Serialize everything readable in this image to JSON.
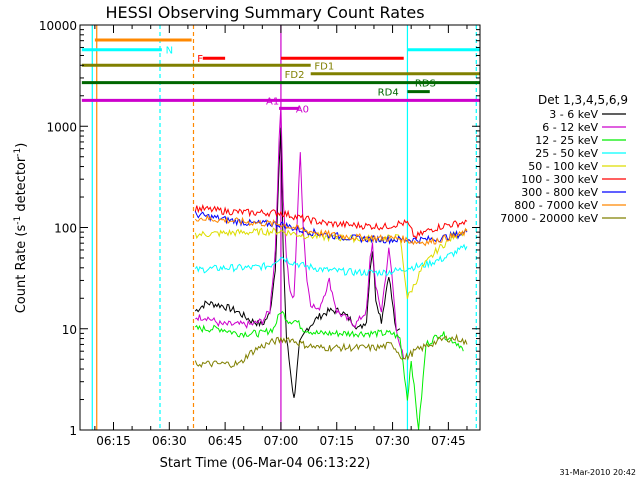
{
  "chart_data": {
    "type": "line",
    "title": "HESSI Observing Summary Count Rates",
    "xlabel": "Start Time (06-Mar-04 06:13:22)",
    "ylabel_main": "Count Rate (s",
    "ylabel_sup1": "-1",
    "ylabel_mid": " detector",
    "ylabel_sup2": "-1",
    "ylabel_end": ")",
    "yscale": "log",
    "ylim": [
      1,
      10000
    ],
    "xlim_minutes": [
      6.0,
      113.5
    ],
    "x_ticks": [
      {
        "label": "06:15",
        "t": 15
      },
      {
        "label": "06:30",
        "t": 30
      },
      {
        "label": "06:45",
        "t": 45
      },
      {
        "label": "07:00",
        "t": 60
      },
      {
        "label": "07:15",
        "t": 75
      },
      {
        "label": "07:30",
        "t": 90
      },
      {
        "label": "07:45",
        "t": 105
      }
    ],
    "y_ticks": [
      {
        "label": "1",
        "v": 1
      },
      {
        "label": "10",
        "v": 10
      },
      {
        "label": "100",
        "v": 100
      },
      {
        "label": "1000",
        "v": 1000
      },
      {
        "label": "10000",
        "v": 10000
      }
    ],
    "legend_title": "Det 1,3,4,5,6,9",
    "series": [
      {
        "name": "3 - 6 keV",
        "color": "#000000",
        "points": [
          [
            37,
            15
          ],
          [
            40,
            18
          ],
          [
            44,
            17
          ],
          [
            48,
            15
          ],
          [
            52,
            12
          ],
          [
            55,
            11
          ],
          [
            57,
            14
          ],
          [
            58.5,
            40
          ],
          [
            59.5,
            400
          ],
          [
            60,
            900
          ],
          [
            60.6,
            60
          ],
          [
            61.5,
            8
          ],
          [
            62.5,
            4
          ],
          [
            63.5,
            2
          ],
          [
            64,
            3
          ],
          [
            65,
            7
          ],
          [
            67,
            10
          ],
          [
            70,
            13
          ],
          [
            73,
            15
          ],
          [
            76,
            15
          ],
          [
            79,
            12
          ],
          [
            81,
            10
          ],
          [
            83,
            12
          ],
          [
            84,
            40
          ],
          [
            84.6,
            60
          ],
          [
            85.5,
            20
          ],
          [
            87,
            12
          ],
          [
            89,
            35
          ],
          [
            89.8,
            20
          ],
          [
            91,
            9
          ],
          [
            92,
            10
          ]
        ]
      },
      {
        "name": "6 - 12 keV",
        "color": "#cc00cc",
        "points": [
          [
            37,
            13
          ],
          [
            40,
            13
          ],
          [
            44,
            11
          ],
          [
            48,
            11
          ],
          [
            52,
            11
          ],
          [
            55,
            12
          ],
          [
            57,
            15
          ],
          [
            58.5,
            60
          ],
          [
            59.5,
            700
          ],
          [
            60,
            1700
          ],
          [
            60.6,
            200
          ],
          [
            61.5,
            50
          ],
          [
            62.5,
            22
          ],
          [
            63.5,
            20
          ],
          [
            64.5,
            150
          ],
          [
            65.2,
            550
          ],
          [
            66,
            100
          ],
          [
            67,
            30
          ],
          [
            68,
            18
          ],
          [
            70,
            15
          ],
          [
            73,
            30
          ],
          [
            75,
            15
          ],
          [
            77,
            13
          ],
          [
            80,
            11
          ],
          [
            83,
            15
          ],
          [
            84,
            50
          ],
          [
            84.6,
            70
          ],
          [
            85.5,
            25
          ],
          [
            87,
            15
          ],
          [
            89,
            60
          ],
          [
            89.8,
            35
          ],
          [
            91,
            10
          ],
          [
            93,
            5
          ]
        ]
      },
      {
        "name": "12 - 25 keV",
        "color": "#00ee00",
        "points": [
          [
            37,
            10
          ],
          [
            40,
            10
          ],
          [
            44,
            10
          ],
          [
            48,
            9
          ],
          [
            52,
            9
          ],
          [
            55,
            9
          ],
          [
            58,
            10
          ],
          [
            60,
            15
          ],
          [
            62,
            12
          ],
          [
            64,
            12
          ],
          [
            66,
            10
          ],
          [
            70,
            9
          ],
          [
            75,
            9
          ],
          [
            80,
            9
          ],
          [
            85,
            9
          ],
          [
            90,
            9
          ],
          [
            92,
            8
          ],
          [
            94,
            2
          ],
          [
            95,
            5
          ],
          [
            97,
            1
          ],
          [
            99,
            7
          ],
          [
            103,
            9
          ],
          [
            108,
            7
          ],
          [
            109,
            6
          ]
        ]
      },
      {
        "name": "25 - 50 keV",
        "color": "#00ffff",
        "points": [
          [
            37,
            38
          ],
          [
            45,
            40
          ],
          [
            52,
            40
          ],
          [
            57,
            42
          ],
          [
            60,
            52
          ],
          [
            62,
            47
          ],
          [
            66,
            42
          ],
          [
            72,
            38
          ],
          [
            80,
            36
          ],
          [
            88,
            36
          ],
          [
            92,
            38
          ],
          [
            94,
            40
          ],
          [
            98,
            42
          ],
          [
            104,
            50
          ],
          [
            110,
            65
          ]
        ]
      },
      {
        "name": "50 - 100 keV",
        "color": "#dddd00",
        "points": [
          [
            37,
            85
          ],
          [
            45,
            88
          ],
          [
            52,
            90
          ],
          [
            60,
            92
          ],
          [
            65,
            85
          ],
          [
            72,
            80
          ],
          [
            80,
            78
          ],
          [
            88,
            78
          ],
          [
            92,
            80
          ],
          [
            94,
            20
          ],
          [
            96,
            28
          ],
          [
            98,
            40
          ],
          [
            102,
            60
          ],
          [
            106,
            80
          ],
          [
            110,
            95
          ]
        ]
      },
      {
        "name": "100 - 300 keV",
        "color": "#ff0000",
        "points": [
          [
            37,
            155
          ],
          [
            45,
            145
          ],
          [
            52,
            140
          ],
          [
            60,
            140
          ],
          [
            65,
            125
          ],
          [
            72,
            110
          ],
          [
            80,
            105
          ],
          [
            88,
            102
          ],
          [
            92,
            110
          ],
          [
            94,
            110
          ],
          [
            96,
            80
          ],
          [
            100,
            95
          ],
          [
            104,
            105
          ],
          [
            108,
            110
          ],
          [
            110,
            115
          ]
        ]
      },
      {
        "name": "300 - 800 keV",
        "color": "#0000ff",
        "points": [
          [
            37,
            135
          ],
          [
            45,
            120
          ],
          [
            52,
            110
          ],
          [
            60,
            108
          ],
          [
            65,
            95
          ],
          [
            72,
            85
          ],
          [
            80,
            78
          ],
          [
            88,
            76
          ],
          [
            92,
            76
          ],
          [
            96,
            76
          ],
          [
            100,
            76
          ],
          [
            104,
            80
          ],
          [
            108,
            86
          ],
          [
            110,
            90
          ]
        ]
      },
      {
        "name": "800 - 7000 keV",
        "color": "#ff8800",
        "points": [
          [
            37,
            125
          ],
          [
            45,
            118
          ],
          [
            52,
            112
          ],
          [
            60,
            108
          ],
          [
            65,
            96
          ],
          [
            72,
            86
          ],
          [
            80,
            80
          ],
          [
            88,
            78
          ],
          [
            92,
            78
          ],
          [
            96,
            72
          ],
          [
            100,
            72
          ],
          [
            104,
            78
          ],
          [
            108,
            84
          ],
          [
            110,
            92
          ]
        ]
      },
      {
        "name": "7000 - 20000 keV",
        "color": "#808000",
        "points": [
          [
            37,
            4.5
          ],
          [
            45,
            4.5
          ],
          [
            49,
            4.5
          ],
          [
            51,
            5.5
          ],
          [
            54,
            6.5
          ],
          [
            58,
            7.5
          ],
          [
            62,
            8
          ],
          [
            66,
            7
          ],
          [
            70,
            6.5
          ],
          [
            75,
            6.5
          ],
          [
            80,
            6.5
          ],
          [
            86,
            6.5
          ],
          [
            90,
            7
          ],
          [
            93,
            5
          ],
          [
            96,
            6
          ],
          [
            100,
            7
          ],
          [
            104,
            8
          ],
          [
            108,
            8
          ],
          [
            110,
            7
          ]
        ]
      }
    ],
    "flag_bars": [
      {
        "label": "F",
        "color": "#ff0000",
        "segments": [
          [
            39,
            45
          ],
          [
            60,
            93
          ]
        ],
        "level": 4700,
        "label_t": 37.5
      },
      {
        "label": "FD1",
        "color": "#808000",
        "segments": [
          [
            6.5,
            68
          ]
        ],
        "level": 4000,
        "label_t": 69
      },
      {
        "label": "FD2",
        "color": "#808000",
        "segments": [
          [
            68,
            113.5
          ]
        ],
        "level": 3300,
        "label_t": 61
      },
      {
        "label": "RDS",
        "color": "#006600",
        "segments": [
          [
            6.5,
            113.5
          ]
        ],
        "level": 2700,
        "label_t": 96
      },
      {
        "label": "RD4",
        "color": "#006600",
        "segments": [
          [
            94,
            100
          ]
        ],
        "level": 2200,
        "label_t": 86
      },
      {
        "label": "A1",
        "color": "#cc00cc",
        "segments": [
          [
            6.5,
            113.5
          ]
        ],
        "level": 1800,
        "label_t": 56
      },
      {
        "label": "A0",
        "color": "#cc00cc",
        "segments": [
          [
            59.5,
            65
          ]
        ],
        "level": 1500,
        "label_t": 64
      },
      {
        "label": "N",
        "color": "#00ffff",
        "segments": [
          [
            6.5,
            28
          ],
          [
            94,
            113.5
          ]
        ],
        "level": 5700,
        "label_t": 29
      }
    ],
    "orange_bar": {
      "segments": [
        [
          10,
          36
        ]
      ],
      "level": 7100
    },
    "vlines": [
      {
        "t": 9.3,
        "color": "#00ffff",
        "style": "solid"
      },
      {
        "t": 10.5,
        "color": "#ff8800",
        "style": "solid"
      },
      {
        "t": 27.5,
        "color": "#00ffff",
        "style": "dashed"
      },
      {
        "t": 36.5,
        "color": "#ff8800",
        "style": "dashed"
      },
      {
        "t": 60.0,
        "color": "#cc00cc",
        "style": "solid"
      },
      {
        "t": 94.0,
        "color": "#00ffff",
        "style": "solid"
      },
      {
        "t": 112.5,
        "color": "#00ffff",
        "style": "dashed"
      }
    ],
    "footer_date": "31-Mar-2010 20:42"
  }
}
